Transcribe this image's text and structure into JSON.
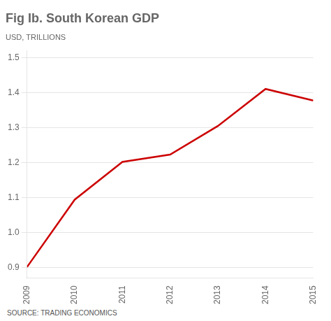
{
  "chart_data": {
    "type": "line",
    "title": "Fig Ib. South Korean GDP",
    "subtitle": "USD, TRILLIONS",
    "source": "SOURCE: TRADING ECONOMICS",
    "x": [
      2009,
      2010,
      2011,
      2012,
      2013,
      2014,
      2015
    ],
    "values": [
      0.901,
      1.094,
      1.202,
      1.223,
      1.305,
      1.411,
      1.378
    ],
    "color": "#cc0000",
    "xlim": [
      2009,
      2015
    ],
    "xticks": [
      2009,
      2010,
      2011,
      2012,
      2013,
      2014,
      2015
    ],
    "ylim": [
      0.87,
      1.52
    ],
    "yticks": [
      0.9,
      {
        "value": 1.0,
        "label": "1.0"
      },
      1.1,
      1.2,
      1.3,
      1.4,
      1.5
    ],
    "grid": true
  }
}
